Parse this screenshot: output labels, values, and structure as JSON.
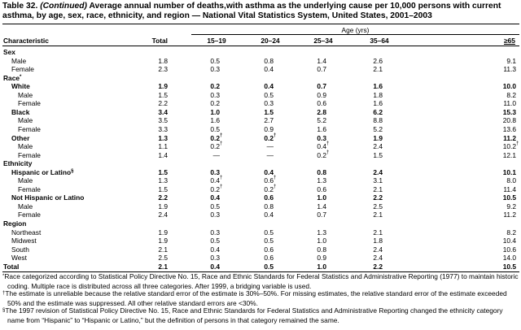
{
  "header": {
    "label": "Table 32.",
    "continued": "(Continued)",
    "title": "Average annual number of deaths,with asthma as the underlying cause per 10,000 persons with current asthma, by age, sex, race, ethnicity, and region — National Vital Statistics System, United States, 2001–2003"
  },
  "table": {
    "group_header": "Age (yrs)",
    "columns": [
      "Characteristic",
      "Total",
      "15–19",
      "20–24",
      "25–34",
      "35–64",
      "≥65"
    ],
    "rows": [
      {
        "kind": "section",
        "label": "Sex",
        "values": []
      },
      {
        "kind": "item",
        "label": "Male",
        "values": [
          "1.8",
          "0.5",
          "0.8",
          "1.4",
          "2.6",
          "9.1"
        ]
      },
      {
        "kind": "item",
        "label": "Female",
        "values": [
          "2.3",
          "0.3",
          "0.4",
          "0.7",
          "2.1",
          "11.3"
        ]
      },
      {
        "kind": "section",
        "label": "Race",
        "label_mark": "*",
        "values": []
      },
      {
        "kind": "group",
        "label": "White",
        "values": [
          "1.9",
          "0.2",
          "0.4",
          "0.7",
          "1.6",
          "10.0"
        ]
      },
      {
        "kind": "subitem",
        "label": "Male",
        "values": [
          "1.5",
          "0.3",
          "0.5",
          "0.9",
          "1.8",
          "8.2"
        ]
      },
      {
        "kind": "subitem",
        "label": "Female",
        "values": [
          "2.2",
          "0.2",
          "0.3",
          "0.6",
          "1.6",
          "11.0"
        ]
      },
      {
        "kind": "group",
        "label": "Black",
        "values": [
          "3.4",
          "1.0",
          "1.5",
          "2.8",
          "6.2",
          "15.3"
        ]
      },
      {
        "kind": "subitem",
        "label": "Male",
        "values": [
          "3.5",
          "1.6",
          "2.7",
          "5.2",
          "8.8",
          "20.8"
        ]
      },
      {
        "kind": "subitem",
        "label": "Female",
        "values": [
          "3.3",
          "0.5",
          "0.9",
          "1.6",
          "5.2",
          "13.6"
        ]
      },
      {
        "kind": "group",
        "label": "Other",
        "values": [
          "1.3",
          {
            "text": "0.2",
            "mark": "†"
          },
          {
            "text": "0.2",
            "mark": "†"
          },
          "0.3",
          "1.9",
          "11.2"
        ]
      },
      {
        "kind": "subitem",
        "label": "Male",
        "values": [
          "1.1",
          {
            "text": "0.2",
            "mark": "†"
          },
          "—",
          {
            "text": "0.4",
            "mark": "†"
          },
          "2.4",
          {
            "text": "10.2",
            "mark": "†"
          }
        ]
      },
      {
        "kind": "subitem",
        "label": "Female",
        "values": [
          "1.4",
          "—",
          "—",
          {
            "text": "0.2",
            "mark": "†"
          },
          "1.5",
          "12.1"
        ]
      },
      {
        "kind": "section",
        "label": "Ethnicity",
        "values": []
      },
      {
        "kind": "group",
        "label": "Hispanic or Latino",
        "label_mark": "§",
        "values": [
          "1.5",
          "0.3",
          "0.4",
          "0.8",
          "2.4",
          "10.1"
        ]
      },
      {
        "kind": "subitem",
        "label": "Male",
        "values": [
          "1.3",
          {
            "text": "0.4",
            "mark": "†"
          },
          {
            "text": "0.6",
            "mark": "†"
          },
          "1.3",
          "3.1",
          "8.0"
        ]
      },
      {
        "kind": "subitem",
        "label": "Female",
        "values": [
          "1.5",
          {
            "text": "0.2",
            "mark": "†"
          },
          {
            "text": "0.2",
            "mark": "†"
          },
          "0.6",
          "2.1",
          "11.4"
        ]
      },
      {
        "kind": "group",
        "label": "Not Hispanic or Latino",
        "values": [
          "2.2",
          "0.4",
          "0.6",
          "1.0",
          "2.2",
          "10.5"
        ]
      },
      {
        "kind": "subitem",
        "label": "Male",
        "values": [
          "1.9",
          "0.5",
          "0.8",
          "1.4",
          "2.5",
          "9.2"
        ]
      },
      {
        "kind": "subitem",
        "label": "Female",
        "values": [
          "2.4",
          "0.3",
          "0.4",
          "0.7",
          "2.1",
          "11.2"
        ]
      },
      {
        "kind": "section",
        "label": "Region",
        "values": []
      },
      {
        "kind": "item",
        "label": "Northeast",
        "values": [
          "1.9",
          "0.3",
          "0.5",
          "1.3",
          "2.1",
          "8.2"
        ]
      },
      {
        "kind": "item",
        "label": "Midwest",
        "values": [
          "1.9",
          "0.5",
          "0.5",
          "1.0",
          "1.8",
          "10.4"
        ]
      },
      {
        "kind": "item",
        "label": "South",
        "values": [
          "2.1",
          "0.4",
          "0.6",
          "0.8",
          "2.4",
          "10.6"
        ]
      },
      {
        "kind": "item",
        "label": "West",
        "values": [
          "2.5",
          "0.3",
          "0.6",
          "0.9",
          "2.4",
          "14.0"
        ]
      },
      {
        "kind": "total",
        "label": "Total",
        "values": [
          "2.1",
          "0.4",
          "0.5",
          "1.0",
          "2.2",
          "10.5"
        ]
      }
    ]
  },
  "footnotes": [
    {
      "symbol": "*",
      "text": "Race categorized according to Statistical Policy Directive No. 15, Race and Ethnic Standards for Federal Statistics and Administrative Reporting (1977) to maintain historic coding. Multiple race is distributed across all three categories. After 1999, a bridging variable is used."
    },
    {
      "symbol": "†",
      "text": "The estimate is unreliable because the relative standard error of the estimate is 30%–50%. For missing estimates, the relative standard error of the estimate exceeded 50% and the estimate was suppressed. All other relative standard errors are <30%."
    },
    {
      "symbol": "§",
      "text": "The 1997 revision of Statistical Policy Directive No. 15, Race and Ethnic Standards for Federal Statistics and Administrative Reporting changed the ethnicity category name from “Hispanic” to “Hispanic or Latino,” but the definition of persons in that category remained the same."
    }
  ]
}
